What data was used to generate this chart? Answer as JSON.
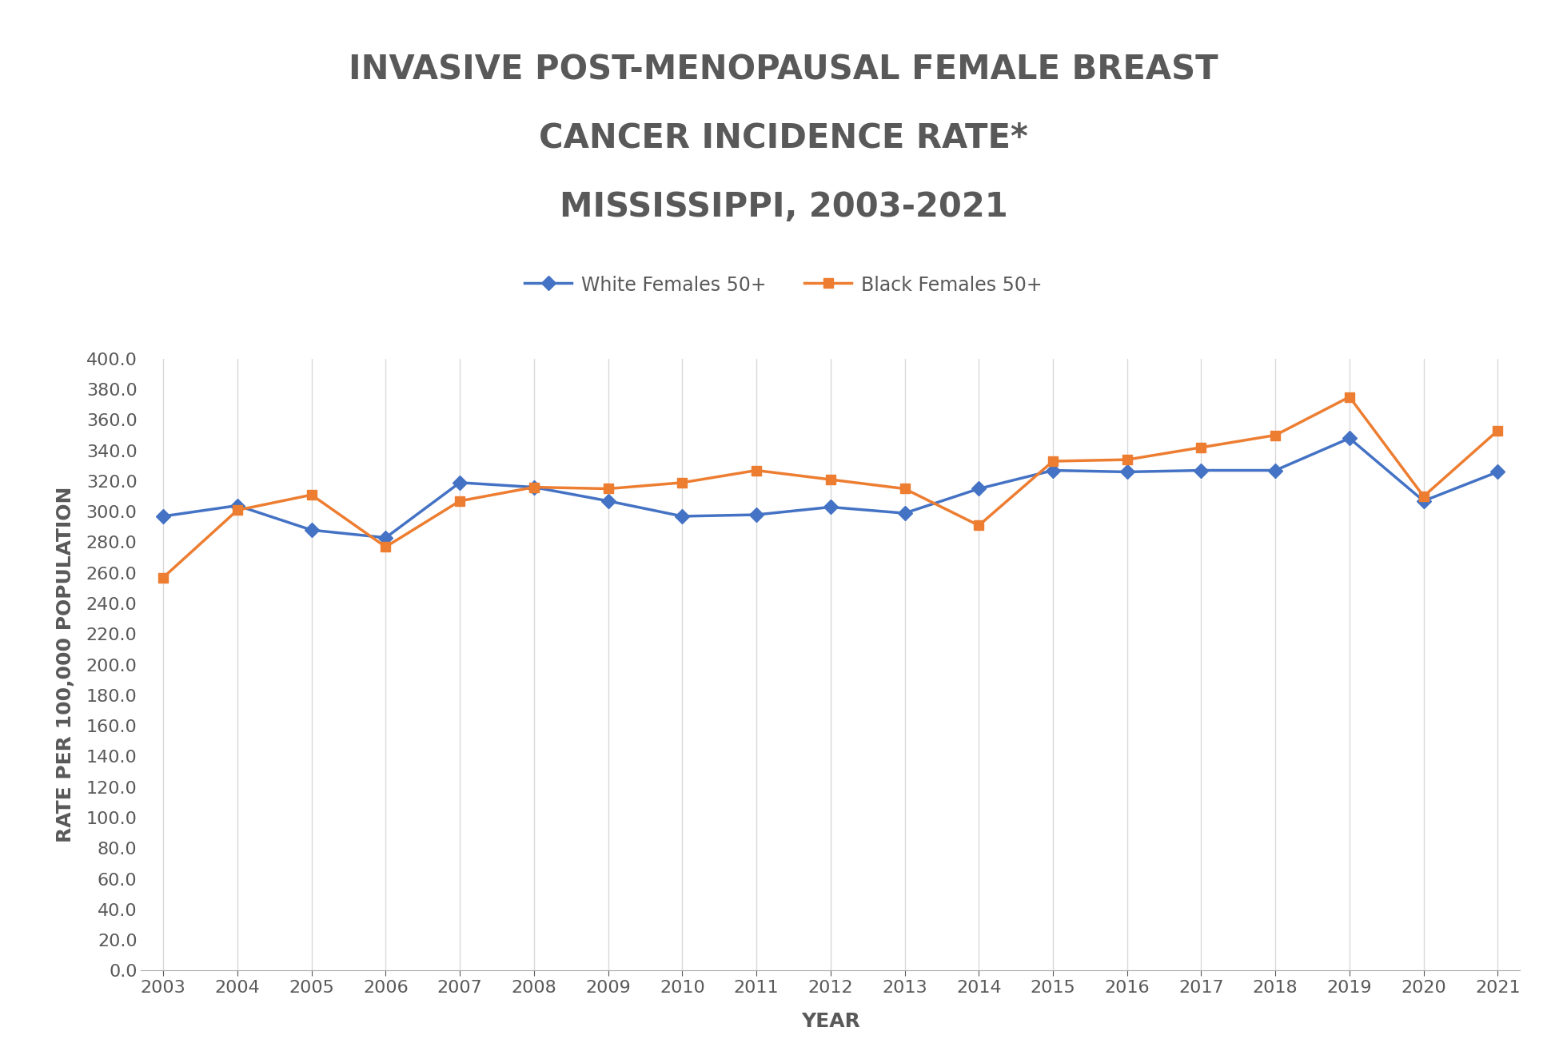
{
  "title_line1": "INVASIVE POST-MENOPAUSAL FEMALE BREAST",
  "title_line2": "CANCER INCIDENCE RATE*",
  "title_line3": "MISSISSIPPI, 2003-2021",
  "xlabel": "YEAR",
  "ylabel": "RATE PER 100,000 POPULATION",
  "years": [
    2003,
    2004,
    2005,
    2006,
    2007,
    2008,
    2009,
    2010,
    2011,
    2012,
    2013,
    2014,
    2015,
    2016,
    2017,
    2018,
    2019,
    2020,
    2021
  ],
  "white_females": [
    297,
    304,
    288,
    283,
    319,
    316,
    307,
    297,
    298,
    303,
    299,
    315,
    327,
    326,
    327,
    327,
    348,
    307,
    326
  ],
  "black_females": [
    257,
    301,
    311,
    277,
    307,
    316,
    315,
    319,
    327,
    321,
    315,
    291,
    333,
    334,
    342,
    350,
    375,
    310,
    353
  ],
  "white_color": "#4472C4",
  "black_color": "#ED7D31",
  "white_label": "White Females 50+",
  "black_label": "Black Females 50+",
  "ylim": [
    0,
    400
  ],
  "background_color": "#ffffff",
  "grid_color": "#d9d9d9",
  "title_color": "#595959",
  "axis_label_color": "#595959",
  "tick_color": "#595959",
  "title_fontsize": 30,
  "axis_label_fontsize": 18,
  "tick_fontsize": 16,
  "legend_fontsize": 17,
  "line_width": 2.5,
  "marker_size": 9
}
